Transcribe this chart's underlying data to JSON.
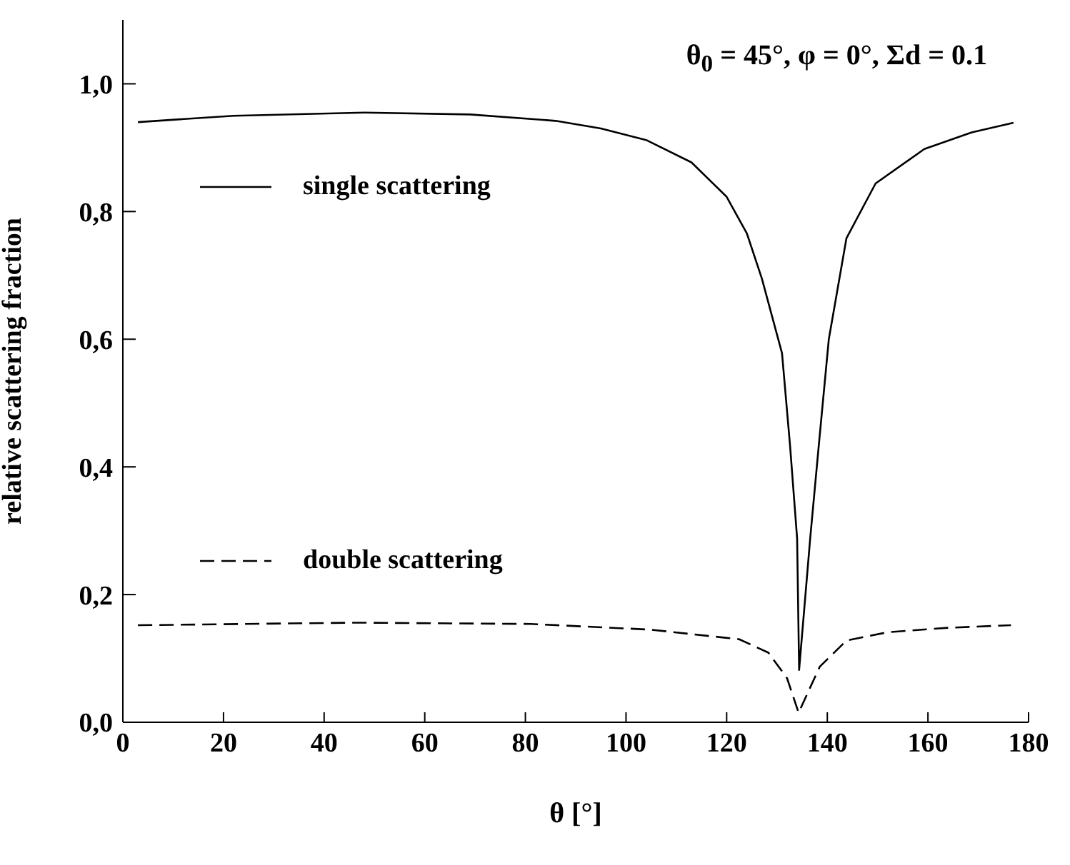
{
  "chart_data": {
    "type": "line",
    "xlabel": "θ [°]",
    "ylabel": "relative scattering fraction",
    "annotations": [
      "θ$_{0}$ = 45°, φ = 0°, Σd = 0.1"
    ],
    "xlim": [
      0,
      180
    ],
    "xticks": [
      0,
      20,
      40,
      60,
      80,
      100,
      120,
      140,
      160,
      180
    ],
    "ylim": [
      0,
      1.1
    ],
    "yticks": [
      {
        "value": 0,
        "label": "0,0"
      },
      {
        "value": 0.2,
        "label": "0,2"
      },
      {
        "value": 0.4,
        "label": "0,4"
      },
      {
        "value": 0.6,
        "label": "0,6"
      },
      {
        "value": 0.8,
        "label": "0,8"
      },
      {
        "value": 1.0,
        "label": "1,0"
      }
    ],
    "grid": false,
    "legend": "left",
    "marker": "none",
    "series": [
      {
        "name": "single scattering",
        "color": "#000000",
        "line_style": "solid",
        "x": [
          3,
          22,
          48,
          69,
          86,
          95,
          104,
          113,
          120,
          124,
          127,
          131,
          132.6,
          134,
          134.4,
          136.6,
          138.3,
          140.3,
          143.8,
          149.6,
          159.3,
          168.7,
          177
        ],
        "values": [
          0.94,
          0.95,
          0.955,
          0.952,
          0.942,
          0.93,
          0.912,
          0.877,
          0.823,
          0.766,
          0.695,
          0.578,
          0.433,
          0.288,
          0.082,
          0.288,
          0.433,
          0.6,
          0.758,
          0.844,
          0.898,
          0.924,
          0.939
        ]
      },
      {
        "name": "double scattering",
        "color": "#000000",
        "line_style": "dashed",
        "x": [
          3,
          46,
          81,
          105,
          122.5,
          128.3,
          132,
          134.3,
          138.5,
          143.8,
          152,
          164,
          176.5
        ],
        "values": [
          0.152,
          0.156,
          0.154,
          0.145,
          0.13,
          0.109,
          0.069,
          0.015,
          0.087,
          0.128,
          0.141,
          0.148,
          0.152
        ]
      }
    ]
  }
}
